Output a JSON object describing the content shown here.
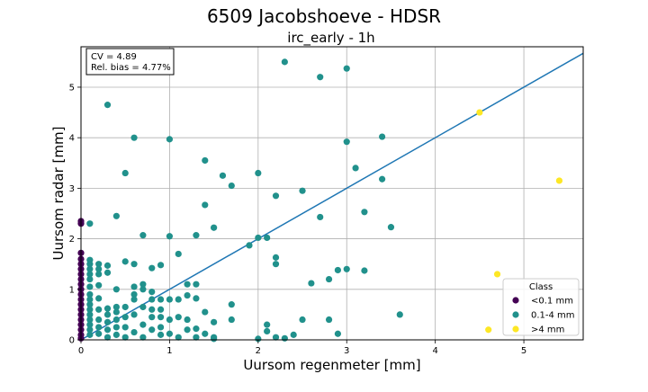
{
  "chart_data": {
    "type": "scatter",
    "title": "6509 Jacobshoeve - HDSR",
    "subtitle": "irc_early - 1h",
    "xlabel": "Uursom regenmeter [mm]",
    "ylabel": "Uursom radar [mm]",
    "xlim": [
      0,
      5.67
    ],
    "ylim": [
      0,
      5.8
    ],
    "xticks": [
      "0",
      "1",
      "2",
      "3",
      "4",
      "5"
    ],
    "yticks": [
      "0",
      "1",
      "2",
      "3",
      "4",
      "5"
    ],
    "grid": true,
    "stats": {
      "cv": "CV = 4.89",
      "bias": "Rel. bias = 4.77%"
    },
    "fit_line": {
      "slope": 1.0,
      "intercept": 0.0,
      "color": "#1f77b4"
    },
    "legend": {
      "title": "Class",
      "placement": "lower-right",
      "entries": [
        {
          "label": "<0.1 mm",
          "color": "#440154"
        },
        {
          "label": "0.1-4 mm",
          "color": "#21918c"
        },
        {
          "label": ">4 mm",
          "color": "#fde725"
        }
      ]
    },
    "series": [
      {
        "name": "<0.1 mm",
        "color": "#440154",
        "points": [
          [
            0,
            2.35
          ],
          [
            0,
            2.3
          ],
          [
            0,
            1.72
          ],
          [
            0,
            1.6
          ],
          [
            0,
            1.5
          ],
          [
            0,
            1.4
          ],
          [
            0,
            1.3
          ],
          [
            0,
            1.2
          ],
          [
            0,
            1.1
          ],
          [
            0,
            1.0
          ],
          [
            0,
            0.9
          ],
          [
            0,
            0.8
          ],
          [
            0,
            0.7
          ],
          [
            0,
            0.6
          ],
          [
            0,
            0.5
          ],
          [
            0,
            0.4
          ],
          [
            0,
            0.3
          ],
          [
            0,
            0.2
          ],
          [
            0,
            0.1
          ],
          [
            0,
            0.03
          ]
        ]
      },
      {
        "name": "0.1-4 mm",
        "color": "#21918c",
        "points": [
          [
            0.3,
            4.65
          ],
          [
            0.6,
            4.0
          ],
          [
            1.0,
            3.97
          ],
          [
            2.3,
            5.5
          ],
          [
            2.7,
            5.2
          ],
          [
            3.0,
            5.37
          ],
          [
            3.0,
            3.92
          ],
          [
            3.4,
            4.02
          ],
          [
            0.5,
            3.3
          ],
          [
            1.4,
            3.55
          ],
          [
            1.6,
            3.25
          ],
          [
            1.7,
            3.05
          ],
          [
            2.0,
            3.3
          ],
          [
            2.2,
            2.85
          ],
          [
            2.5,
            2.95
          ],
          [
            3.1,
            3.4
          ],
          [
            3.4,
            3.18
          ],
          [
            0.4,
            2.45
          ],
          [
            0.7,
            2.07
          ],
          [
            1.0,
            2.05
          ],
          [
            1.3,
            2.07
          ],
          [
            1.4,
            2.67
          ],
          [
            1.5,
            2.22
          ],
          [
            1.9,
            1.87
          ],
          [
            2.0,
            2.02
          ],
          [
            2.1,
            2.02
          ],
          [
            2.7,
            2.43
          ],
          [
            3.2,
            2.53
          ],
          [
            3.5,
            2.23
          ],
          [
            0.1,
            2.3
          ],
          [
            1.1,
            1.7
          ],
          [
            2.2,
            1.63
          ],
          [
            2.2,
            1.5
          ],
          [
            2.6,
            1.12
          ],
          [
            2.8,
            1.2
          ],
          [
            2.9,
            1.38
          ],
          [
            3.0,
            1.4
          ],
          [
            3.2,
            1.37
          ],
          [
            3.6,
            0.5
          ],
          [
            1.7,
            0.7
          ],
          [
            1.7,
            0.4
          ],
          [
            2.1,
            0.3
          ],
          [
            2.1,
            0.17
          ],
          [
            2.2,
            0.05
          ],
          [
            2.3,
            0.03
          ],
          [
            2.4,
            0.1
          ],
          [
            2.5,
            0.4
          ],
          [
            2.8,
            0.4
          ],
          [
            2.9,
            0.12
          ],
          [
            2.0,
            0.02
          ],
          [
            0.1,
            1.58
          ],
          [
            0.1,
            1.5
          ],
          [
            0.1,
            1.4
          ],
          [
            0.1,
            1.3
          ],
          [
            0.1,
            1.2
          ],
          [
            0.1,
            1.05
          ],
          [
            0.1,
            0.9
          ],
          [
            0.1,
            0.8
          ],
          [
            0.1,
            0.7
          ],
          [
            0.1,
            0.6
          ],
          [
            0.1,
            0.5
          ],
          [
            0.1,
            0.4
          ],
          [
            0.1,
            0.3
          ],
          [
            0.1,
            0.2
          ],
          [
            0.1,
            0.1
          ],
          [
            0.2,
            1.5
          ],
          [
            0.2,
            1.4
          ],
          [
            0.2,
            1.3
          ],
          [
            0.2,
            1.08
          ],
          [
            0.2,
            0.82
          ],
          [
            0.2,
            0.6
          ],
          [
            0.2,
            0.4
          ],
          [
            0.2,
            0.25
          ],
          [
            0.2,
            0.12
          ],
          [
            0.3,
            1.47
          ],
          [
            0.3,
            1.33
          ],
          [
            0.3,
            0.62
          ],
          [
            0.3,
            0.5
          ],
          [
            0.3,
            0.35
          ],
          [
            0.3,
            0.2
          ],
          [
            0.3,
            0.05
          ],
          [
            0.4,
            1.0
          ],
          [
            0.4,
            0.65
          ],
          [
            0.4,
            0.55
          ],
          [
            0.4,
            0.4
          ],
          [
            0.4,
            0.25
          ],
          [
            0.4,
            0.1
          ],
          [
            0.5,
            1.55
          ],
          [
            0.5,
            0.65
          ],
          [
            0.5,
            0.45
          ],
          [
            0.5,
            0.25
          ],
          [
            0.5,
            0.05
          ],
          [
            0.6,
            1.5
          ],
          [
            0.6,
            1.05
          ],
          [
            0.6,
            0.9
          ],
          [
            0.6,
            0.8
          ],
          [
            0.6,
            0.5
          ],
          [
            0.6,
            0.15
          ],
          [
            0.7,
            1.1
          ],
          [
            0.7,
            1.0
          ],
          [
            0.7,
            0.65
          ],
          [
            0.7,
            0.3
          ],
          [
            0.7,
            0.05
          ],
          [
            0.8,
            1.42
          ],
          [
            0.8,
            0.95
          ],
          [
            0.8,
            0.8
          ],
          [
            0.8,
            0.6
          ],
          [
            0.8,
            0.45
          ],
          [
            0.8,
            0.2
          ],
          [
            0.9,
            1.48
          ],
          [
            0.9,
            0.8
          ],
          [
            0.9,
            0.6
          ],
          [
            0.9,
            0.45
          ],
          [
            0.9,
            0.25
          ],
          [
            0.9,
            0.1
          ],
          [
            1.0,
            0.8
          ],
          [
            1.0,
            0.4
          ],
          [
            1.0,
            0.12
          ],
          [
            1.1,
            0.8
          ],
          [
            1.1,
            0.45
          ],
          [
            1.1,
            0.05
          ],
          [
            1.2,
            1.1
          ],
          [
            1.2,
            0.88
          ],
          [
            1.2,
            0.4
          ],
          [
            1.2,
            0.2
          ],
          [
            1.3,
            1.1
          ],
          [
            1.3,
            0.82
          ],
          [
            1.3,
            0.22
          ],
          [
            1.3,
            0.05
          ],
          [
            1.4,
            0.55
          ],
          [
            1.4,
            0.12
          ],
          [
            1.5,
            0.35
          ],
          [
            1.5,
            0.05
          ],
          [
            1.5,
            0.02
          ]
        ]
      },
      {
        "name": ">4 mm",
        "color": "#fde725",
        "points": [
          [
            4.5,
            4.5
          ],
          [
            5.4,
            3.15
          ],
          [
            4.7,
            1.3
          ],
          [
            4.6,
            0.2
          ]
        ]
      }
    ]
  }
}
